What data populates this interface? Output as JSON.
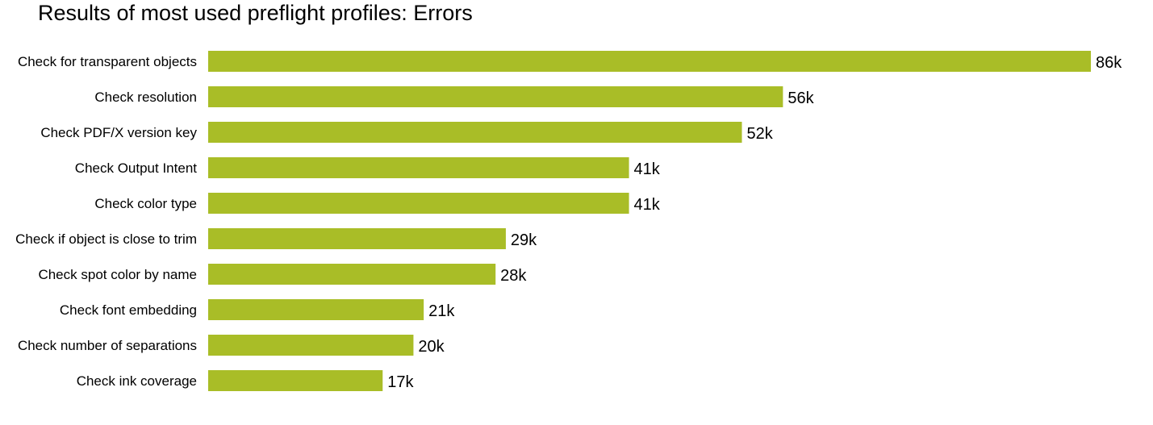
{
  "chart_data": {
    "type": "bar",
    "orientation": "horizontal",
    "title": "Results of most used preflight profiles: Errors",
    "categories": [
      "Check for transparent objects",
      "Check resolution",
      "Check PDF/X version key",
      "Check Output Intent",
      "Check color type",
      "Check if object is close to trim",
      "Check spot color by name",
      "Check font embedding",
      "Check number of separations",
      "Check ink coverage"
    ],
    "values": [
      86,
      56,
      52,
      41,
      41,
      29,
      28,
      21,
      20,
      17
    ],
    "value_labels": [
      "86k",
      "56k",
      "52k",
      "41k",
      "41k",
      "29k",
      "28k",
      "21k",
      "20k",
      "17k"
    ],
    "unit": "k",
    "xlim": [
      0,
      86
    ],
    "grid": false,
    "legend": "none",
    "bar_color": "#a9bd27"
  }
}
